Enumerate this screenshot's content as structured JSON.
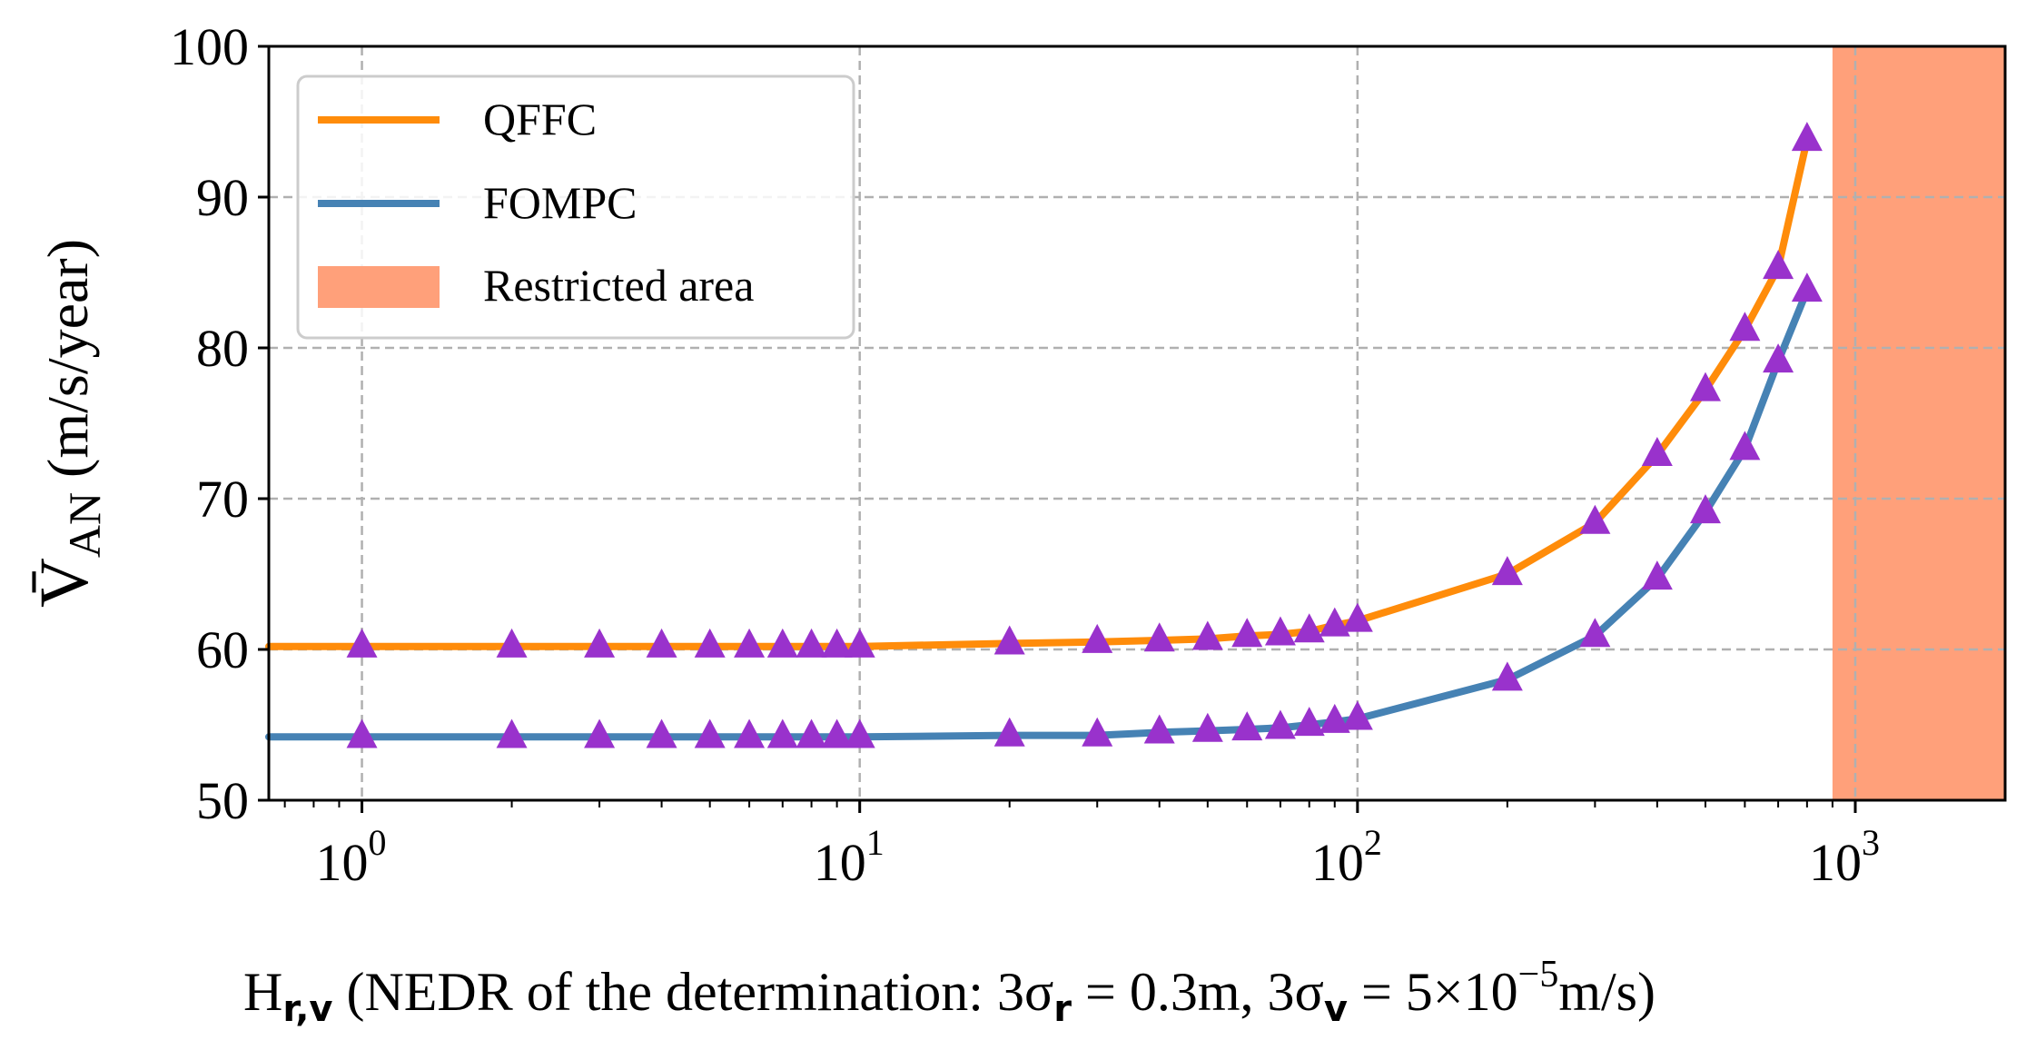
{
  "chart_data": {
    "type": "line",
    "xscale": "log",
    "xlim": [
      0.65,
      2000
    ],
    "ylim": [
      50,
      100
    ],
    "grid": true,
    "legend_position": "top-left",
    "x_ticks": [
      {
        "value": 1,
        "base": "10",
        "exp": "0"
      },
      {
        "value": 10,
        "base": "10",
        "exp": "1"
      },
      {
        "value": 100,
        "base": "10",
        "exp": "2"
      },
      {
        "value": 1000,
        "base": "10",
        "exp": "3"
      }
    ],
    "y_ticks": [
      50,
      60,
      70,
      80,
      90,
      100
    ],
    "xlabel": {
      "H": "H",
      "H_sub": "r,v",
      "paren_text": " (NEDR of the determination: 3σ",
      "sigma_r_sub": "r",
      "eq1": " = 0.3m, 3σ",
      "sigma_v_sub": "v",
      "eq2": " = 5×10",
      "exp": "−5",
      "unit": "m/s)"
    },
    "ylabel": {
      "main": "V̄",
      "sub": "AN",
      "unit": " (m/s/year)"
    },
    "x": [
      1,
      2,
      3,
      4,
      5,
      6,
      7,
      8,
      9,
      10,
      20,
      30,
      40,
      50,
      60,
      70,
      80,
      90,
      100,
      200,
      300,
      400,
      500,
      600,
      700,
      800
    ],
    "series": [
      {
        "name": "QFFC",
        "color": "#ff8c0a",
        "values": [
          60.2,
          60.2,
          60.2,
          60.2,
          60.2,
          60.2,
          60.2,
          60.2,
          60.2,
          60.2,
          60.4,
          60.5,
          60.6,
          60.7,
          60.9,
          61.0,
          61.2,
          61.6,
          61.9,
          65.0,
          68.4,
          72.9,
          77.2,
          81.2,
          85.3,
          93.8
        ]
      },
      {
        "name": "FOMPC",
        "color": "#4682b4",
        "values": [
          54.2,
          54.2,
          54.2,
          54.2,
          54.2,
          54.2,
          54.2,
          54.2,
          54.2,
          54.2,
          54.3,
          54.3,
          54.5,
          54.6,
          54.7,
          54.8,
          55.0,
          55.2,
          55.4,
          58.0,
          60.9,
          64.7,
          69.1,
          73.3,
          79.1,
          83.8
        ]
      }
    ],
    "marker_color": "#9932cc",
    "restricted_area": {
      "name": "Restricted area",
      "x_range": [
        900,
        2000
      ],
      "color": "#ffa07a"
    }
  }
}
